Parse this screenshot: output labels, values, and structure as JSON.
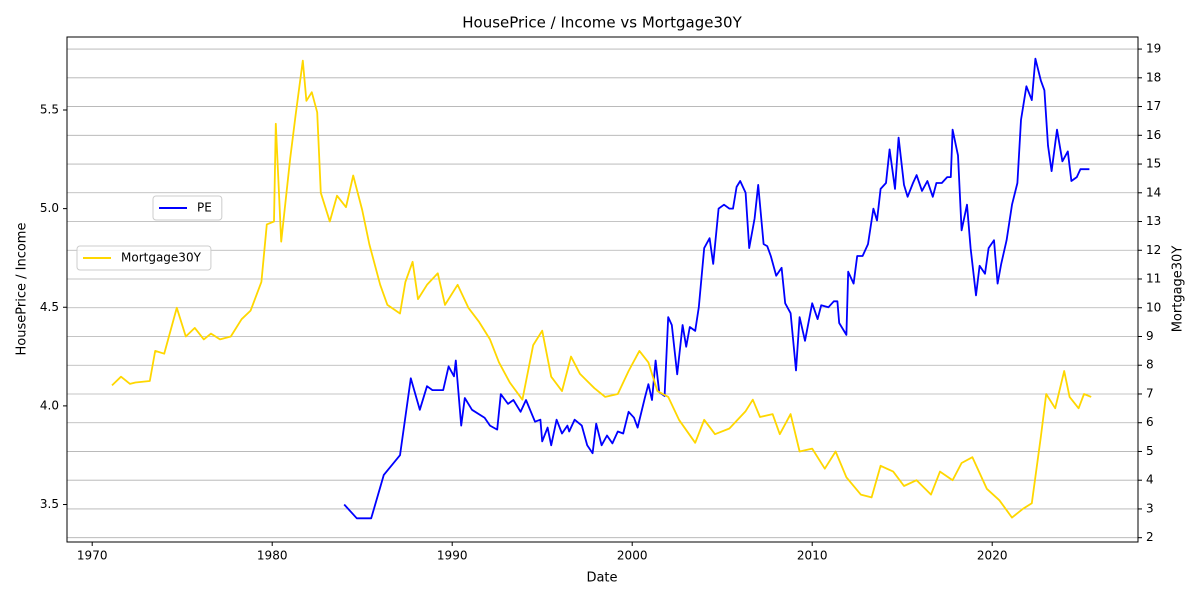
{
  "chart_data": {
    "type": "line",
    "title": "HousePrice / Income vs Mortgage30Y",
    "xlabel": "Date",
    "ylabel": "HousePrice / Income",
    "y2label": "Mortgage30Y",
    "ylabel_color": "#0000ff",
    "xlim": [
      1968.6,
      2028.1
    ],
    "xticks": [
      1970,
      1980,
      1990,
      2000,
      2010,
      2020
    ],
    "ylim": [
      3.31,
      5.87
    ],
    "yticks": [
      3.5,
      {
        "value": 4,
        "label": "4.0"
      },
      4.5,
      {
        "value": 5,
        "label": "5.0"
      },
      5.5
    ],
    "y2lim": [
      1.85,
      19.42
    ],
    "y2ticks": [
      2,
      3,
      4,
      5,
      6,
      7,
      8,
      9,
      10,
      11,
      12,
      13,
      14,
      15,
      16,
      17,
      18,
      19
    ],
    "grid": true,
    "series": [
      {
        "name": "PE",
        "color": "#0000ff",
        "axis": "y",
        "x": [
          1984.0,
          1984.7,
          1985.5,
          1986.2,
          1987.1,
          1987.7,
          1988.2,
          1988.6,
          1988.9,
          1989.5,
          1989.8,
          1990.1,
          1990.2,
          1990.5,
          1990.7,
          1991.1,
          1991.8,
          1992.1,
          1992.5,
          1992.7,
          1993.1,
          1993.4,
          1993.8,
          1994.1,
          1994.6,
          1994.9,
          1995.0,
          1995.3,
          1995.5,
          1995.8,
          1996.1,
          1996.4,
          1996.5,
          1996.8,
          1997.2,
          1997.5,
          1997.8,
          1998.0,
          1998.3,
          1998.6,
          1998.9,
          1999.2,
          1999.5,
          1999.8,
          2000.1,
          2000.3,
          2000.7,
          2000.9,
          2001.1,
          2001.3,
          2001.5,
          2001.8,
          2002.0,
          2002.2,
          2002.5,
          2002.8,
          2003.0,
          2003.2,
          2003.5,
          2003.7,
          2004.0,
          2004.3,
          2004.5,
          2004.8,
          2005.1,
          2005.4,
          2005.6,
          2005.8,
          2006.0,
          2006.3,
          2006.5,
          2006.8,
          2007.0,
          2007.3,
          2007.5,
          2007.7,
          2008.0,
          2008.3,
          2008.5,
          2008.8,
          2009.1,
          2009.3,
          2009.6,
          2010.0,
          2010.3,
          2010.5,
          2010.9,
          2011.2,
          2011.4,
          2011.5,
          2011.9,
          2012.0,
          2012.3,
          2012.5,
          2012.8,
          2013.1,
          2013.4,
          2013.6,
          2013.8,
          2014.1,
          2014.3,
          2014.6,
          2014.8,
          2015.1,
          2015.3,
          2015.6,
          2015.8,
          2016.1,
          2016.4,
          2016.7,
          2016.9,
          2017.2,
          2017.5,
          2017.7,
          2017.8,
          2018.1,
          2018.3,
          2018.6,
          2018.8,
          2019.1,
          2019.3,
          2019.6,
          2019.8,
          2020.1,
          2020.3,
          2020.5,
          2020.8,
          2021.1,
          2021.4,
          2021.6,
          2021.9,
          2022.2,
          2022.4,
          2022.7,
          2022.9,
          2023.1,
          2023.3,
          2023.6,
          2023.9,
          2024.2,
          2024.4,
          2024.7,
          2024.9,
          2025.4
        ],
        "values": [
          3.5,
          3.43,
          3.43,
          3.65,
          3.75,
          4.14,
          3.98,
          4.1,
          4.08,
          4.08,
          4.2,
          4.15,
          4.23,
          3.9,
          4.04,
          3.98,
          3.94,
          3.9,
          3.88,
          4.06,
          4.01,
          4.03,
          3.97,
          4.03,
          3.92,
          3.93,
          3.82,
          3.89,
          3.8,
          3.93,
          3.86,
          3.9,
          3.87,
          3.93,
          3.9,
          3.8,
          3.76,
          3.91,
          3.8,
          3.85,
          3.81,
          3.87,
          3.86,
          3.97,
          3.94,
          3.89,
          4.04,
          4.11,
          4.03,
          4.23,
          4.07,
          4.05,
          4.45,
          4.41,
          4.16,
          4.41,
          4.3,
          4.4,
          4.38,
          4.5,
          4.8,
          4.85,
          4.72,
          5.0,
          5.02,
          5.0,
          5.0,
          5.11,
          5.14,
          5.08,
          4.8,
          4.95,
          5.12,
          4.82,
          4.81,
          4.76,
          4.66,
          4.7,
          4.52,
          4.47,
          4.18,
          4.45,
          4.33,
          4.52,
          4.44,
          4.51,
          4.5,
          4.53,
          4.53,
          4.42,
          4.36,
          4.68,
          4.62,
          4.76,
          4.76,
          4.82,
          5.0,
          4.94,
          5.1,
          5.13,
          5.3,
          5.1,
          5.36,
          5.12,
          5.06,
          5.13,
          5.17,
          5.09,
          5.14,
          5.06,
          5.13,
          5.13,
          5.16,
          5.16,
          5.4,
          5.27,
          4.89,
          5.02,
          4.8,
          4.56,
          4.71,
          4.67,
          4.8,
          4.84,
          4.62,
          4.72,
          4.84,
          5.02,
          5.13,
          5.45,
          5.62,
          5.55,
          5.76,
          5.65,
          5.6,
          5.32,
          5.19,
          5.4,
          5.24,
          5.29,
          5.14,
          5.16,
          5.2,
          5.2
        ]
      },
      {
        "name": "Mortgage30Y",
        "color": "#ffd700",
        "axis": "y2",
        "x": [
          1971.1,
          1971.6,
          1972.1,
          1972.4,
          1973.2,
          1973.5,
          1974.0,
          1974.7,
          1975.2,
          1975.7,
          1976.2,
          1976.6,
          1977.1,
          1977.7,
          1978.3,
          1978.8,
          1979.4,
          1979.7,
          1980.1,
          1980.2,
          1980.5,
          1981.0,
          1981.3,
          1981.7,
          1981.9,
          1982.2,
          1982.5,
          1982.7,
          1983.2,
          1983.6,
          1984.1,
          1984.5,
          1985.0,
          1985.4,
          1986.0,
          1986.4,
          1987.1,
          1987.4,
          1987.8,
          1988.1,
          1988.6,
          1989.2,
          1989.6,
          1990.3,
          1990.9,
          1991.5,
          1992.1,
          1992.6,
          1993.2,
          1993.9,
          1994.5,
          1995.0,
          1995.5,
          1996.1,
          1996.6,
          1997.1,
          1997.9,
          1998.5,
          1999.2,
          1999.8,
          2000.4,
          2000.9,
          2001.4,
          2002.0,
          2002.6,
          2003.5,
          2004.0,
          2004.6,
          2005.4,
          2006.3,
          2006.7,
          2007.1,
          2007.8,
          2008.2,
          2008.8,
          2009.3,
          2010.0,
          2010.7,
          2011.3,
          2011.9,
          2012.7,
          2013.3,
          2013.8,
          2014.5,
          2015.1,
          2015.8,
          2016.6,
          2017.1,
          2017.8,
          2018.3,
          2018.9,
          2019.7,
          2020.4,
          2021.1,
          2021.7,
          2022.2,
          2022.7,
          2023.0,
          2023.5,
          2024.0,
          2024.3,
          2024.8,
          2025.1,
          2025.5
        ],
        "values": [
          7.3,
          7.6,
          7.35,
          7.4,
          7.45,
          8.5,
          8.4,
          10.0,
          9.0,
          9.3,
          8.9,
          9.1,
          8.9,
          9.0,
          9.6,
          9.9,
          10.9,
          12.9,
          13.0,
          16.4,
          12.3,
          15.2,
          16.7,
          18.6,
          17.2,
          17.5,
          16.8,
          14.0,
          13.0,
          13.9,
          13.5,
          14.6,
          13.4,
          12.2,
          10.8,
          10.1,
          9.8,
          10.9,
          11.6,
          10.3,
          10.8,
          11.2,
          10.1,
          10.8,
          10.0,
          9.5,
          8.9,
          8.1,
          7.4,
          6.8,
          8.7,
          9.2,
          7.6,
          7.1,
          8.3,
          7.7,
          7.2,
          6.9,
          7.0,
          7.8,
          8.5,
          8.1,
          7.1,
          6.9,
          6.1,
          5.3,
          6.1,
          5.6,
          5.8,
          6.4,
          6.8,
          6.2,
          6.3,
          5.6,
          6.3,
          5.0,
          5.1,
          4.4,
          5.0,
          4.1,
          3.5,
          3.4,
          4.5,
          4.3,
          3.8,
          4.0,
          3.5,
          4.3,
          4.0,
          4.6,
          4.8,
          3.7,
          3.3,
          2.7,
          3.0,
          3.2,
          5.5,
          7.0,
          6.5,
          7.8,
          6.9,
          6.5,
          7.0,
          6.9
        ]
      }
    ]
  }
}
